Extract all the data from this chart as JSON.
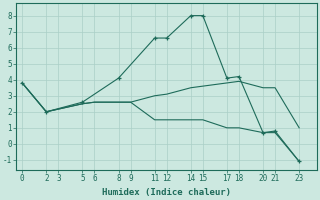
{
  "xlabel": "Humidex (Indice chaleur)",
  "xticks": [
    0,
    2,
    3,
    5,
    6,
    8,
    9,
    11,
    12,
    14,
    15,
    17,
    18,
    20,
    21,
    23
  ],
  "yticks": [
    -1,
    0,
    1,
    2,
    3,
    4,
    5,
    6,
    7,
    8
  ],
  "ylim": [
    -1.6,
    8.8
  ],
  "xlim": [
    -0.5,
    24.5
  ],
  "bg_color": "#cce8e0",
  "line_color": "#1e6b5a",
  "grid_color": "#aacfc7",
  "font_size_labels": 6.5,
  "font_size_ticks": 5.5,
  "line1_x": [
    0,
    2,
    5,
    8,
    11,
    12,
    14,
    15,
    17,
    18,
    20,
    21,
    23
  ],
  "line1_y": [
    3.8,
    2.0,
    2.6,
    4.1,
    6.6,
    6.6,
    8.0,
    8.0,
    4.1,
    4.2,
    0.7,
    0.8,
    -1.1
  ],
  "line2_x": [
    0,
    2,
    5,
    6,
    8,
    9,
    11,
    12,
    14,
    15,
    17,
    18,
    20,
    21,
    23
  ],
  "line2_y": [
    3.8,
    2.0,
    2.5,
    2.6,
    2.6,
    2.6,
    3.0,
    3.1,
    3.5,
    3.6,
    3.8,
    3.9,
    3.5,
    3.5,
    1.0
  ],
  "line3_x": [
    0,
    2,
    5,
    6,
    8,
    9,
    11,
    12,
    14,
    15,
    17,
    18,
    20,
    21,
    23
  ],
  "line3_y": [
    3.8,
    2.0,
    2.5,
    2.6,
    2.6,
    2.6,
    1.5,
    1.5,
    1.5,
    1.5,
    1.0,
    1.0,
    0.7,
    0.7,
    -1.1
  ]
}
